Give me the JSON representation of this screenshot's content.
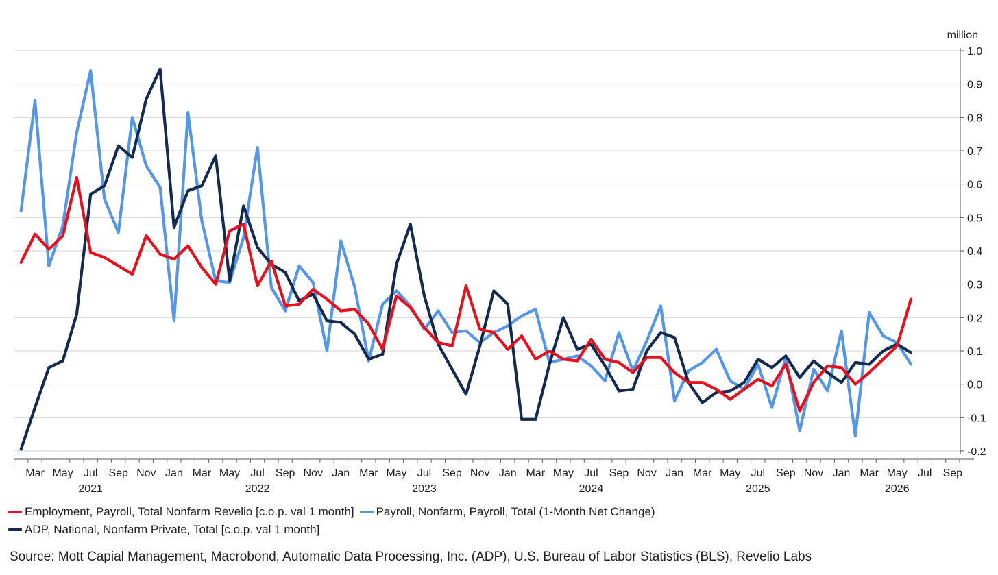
{
  "chart_data": {
    "type": "line",
    "unit_label": "million",
    "ylim": [
      -0.2,
      1.0
    ],
    "yticks": [
      1.0,
      0.9,
      0.8,
      0.7,
      0.6,
      0.5,
      0.4,
      0.3,
      0.2,
      0.1,
      0.0,
      -0.1,
      -0.2
    ],
    "ytick_labels": [
      "1.0",
      "0.9",
      "0.8",
      "0.7",
      "0.6",
      "0.5",
      "0.4",
      "0.3",
      "0.2",
      "0.1",
      "0.0",
      "-0.1",
      "-0.2"
    ],
    "y_axis_side": "right",
    "grid": true,
    "x_start": "2021-02",
    "x_end": "2026-09",
    "x_month_labels": [
      {
        "date": "2021-03",
        "label": "Mar"
      },
      {
        "date": "2021-05",
        "label": "May"
      },
      {
        "date": "2021-07",
        "label": "Jul"
      },
      {
        "date": "2021-09",
        "label": "Sep"
      },
      {
        "date": "2021-11",
        "label": "Nov"
      },
      {
        "date": "2022-01",
        "label": "Jan"
      },
      {
        "date": "2022-03",
        "label": "Mar"
      },
      {
        "date": "2022-05",
        "label": "May"
      },
      {
        "date": "2022-07",
        "label": "Jul"
      },
      {
        "date": "2022-09",
        "label": "Sep"
      },
      {
        "date": "2022-11",
        "label": "Nov"
      },
      {
        "date": "2023-01",
        "label": "Jan"
      },
      {
        "date": "2023-03",
        "label": "Mar"
      },
      {
        "date": "2023-05",
        "label": "May"
      },
      {
        "date": "2023-07",
        "label": "Jul"
      },
      {
        "date": "2023-09",
        "label": "Sep"
      },
      {
        "date": "2023-11",
        "label": "Nov"
      },
      {
        "date": "2024-01",
        "label": "Jan"
      },
      {
        "date": "2024-03",
        "label": "Mar"
      },
      {
        "date": "2024-05",
        "label": "May"
      },
      {
        "date": "2024-07",
        "label": "Jul"
      },
      {
        "date": "2024-09",
        "label": "Sep"
      },
      {
        "date": "2024-11",
        "label": "Nov"
      },
      {
        "date": "2025-01",
        "label": "Jan"
      },
      {
        "date": "2025-03",
        "label": "Mar"
      },
      {
        "date": "2025-05",
        "label": "May"
      },
      {
        "date": "2025-07",
        "label": "Jul"
      },
      {
        "date": "2025-09",
        "label": "Sep"
      },
      {
        "date": "2025-11",
        "label": "Nov"
      },
      {
        "date": "2026-01",
        "label": "Jan"
      },
      {
        "date": "2026-03",
        "label": "Mar"
      },
      {
        "date": "2026-05",
        "label": "May"
      },
      {
        "date": "2026-07",
        "label": "Jul"
      },
      {
        "date": "2026-09",
        "label": "Sep"
      }
    ],
    "x_year_labels": [
      {
        "date": "2021-07",
        "label": "2021"
      },
      {
        "date": "2022-07",
        "label": "2022"
      },
      {
        "date": "2023-07",
        "label": "2023"
      },
      {
        "date": "2024-07",
        "label": "2024"
      },
      {
        "date": "2025-07",
        "label": "2025"
      },
      {
        "date": "2026-05",
        "label": "2026"
      }
    ],
    "series": [
      {
        "name": "Employment, Payroll, Total Nonfarm Revelio [c.o.p. val 1 month]",
        "color": "#e8101e",
        "start": "2021-02",
        "values": [
          0.365,
          0.45,
          0.405,
          0.445,
          0.62,
          0.395,
          0.38,
          0.355,
          0.33,
          0.445,
          0.39,
          0.375,
          0.415,
          0.35,
          0.3,
          0.46,
          0.48,
          0.295,
          0.37,
          0.235,
          0.24,
          0.285,
          0.255,
          0.22,
          0.225,
          0.18,
          0.105,
          0.265,
          0.23,
          0.17,
          0.125,
          0.115,
          0.295,
          0.165,
          0.155,
          0.105,
          0.145,
          0.075,
          0.1,
          0.075,
          0.07,
          0.135,
          0.075,
          0.065,
          0.035,
          0.08,
          0.08,
          0.035,
          0.005,
          0.005,
          -0.015,
          -0.045,
          -0.015,
          0.015,
          -0.005,
          0.06,
          -0.08,
          0.005,
          0.055,
          0.05,
          0.0,
          0.035,
          0.075,
          0.115,
          0.255
        ]
      },
      {
        "name": "Payroll, Nonfarm, Payroll, Total (1-Month Net Change)",
        "color": "#5596e6",
        "start": "2021-02",
        "values": [
          0.52,
          0.85,
          0.355,
          0.475,
          0.755,
          0.94,
          0.555,
          0.455,
          0.8,
          0.655,
          0.59,
          0.19,
          0.815,
          0.49,
          0.31,
          0.305,
          0.44,
          0.71,
          0.29,
          0.22,
          0.355,
          0.305,
          0.1,
          0.43,
          0.29,
          0.07,
          0.24,
          0.28,
          0.235,
          0.165,
          0.22,
          0.155,
          0.16,
          0.125,
          0.155,
          0.175,
          0.205,
          0.225,
          0.065,
          0.075,
          0.085,
          0.055,
          0.01,
          0.155,
          0.04,
          0.13,
          0.235,
          -0.05,
          0.04,
          0.065,
          0.105,
          0.01,
          -0.015,
          0.06,
          -0.07,
          0.08,
          -0.14,
          0.045,
          -0.02,
          0.16,
          -0.155,
          0.215,
          0.145,
          0.125,
          0.06
        ]
      },
      {
        "name": "ADP, National, Nonfarm Private, Total [c.o.p. val 1 month]",
        "color": "#142b4f",
        "start": "2021-02",
        "values": [
          -0.195,
          -0.07,
          0.05,
          0.07,
          0.21,
          0.57,
          0.595,
          0.715,
          0.68,
          0.855,
          0.945,
          0.47,
          0.58,
          0.595,
          0.685,
          0.31,
          0.535,
          0.41,
          0.36,
          0.335,
          0.25,
          0.27,
          0.19,
          0.185,
          0.15,
          0.075,
          0.09,
          0.36,
          0.48,
          0.265,
          0.12,
          0.045,
          -0.03,
          0.115,
          0.28,
          0.24,
          -0.105,
          -0.105,
          0.06,
          0.2,
          0.105,
          0.12,
          0.055,
          -0.02,
          -0.015,
          0.1,
          0.155,
          0.14,
          0.005,
          -0.055,
          -0.025,
          -0.02,
          0.005,
          0.075,
          0.05,
          0.085,
          0.02,
          0.07,
          0.035,
          0.005,
          0.065,
          0.06,
          0.1,
          0.12,
          0.095
        ]
      }
    ]
  },
  "legend": {
    "row1": [
      {
        "label": "Employment, Payroll, Total Nonfarm Revelio [c.o.p. val 1 month]",
        "color": "#e8101e"
      },
      {
        "label": "Payroll, Nonfarm, Payroll, Total (1-Month Net Change)",
        "color": "#5596e6"
      }
    ],
    "row2": [
      {
        "label": "ADP, National, Nonfarm Private, Total [c.o.p. val 1 month]",
        "color": "#142b4f"
      }
    ]
  },
  "source_text": "Source: Mott Capial Management, Macrobond, Automatic Data Processing, Inc. (ADP), U.S. Bureau of Labor Statistics (BLS), Revelio Labs"
}
